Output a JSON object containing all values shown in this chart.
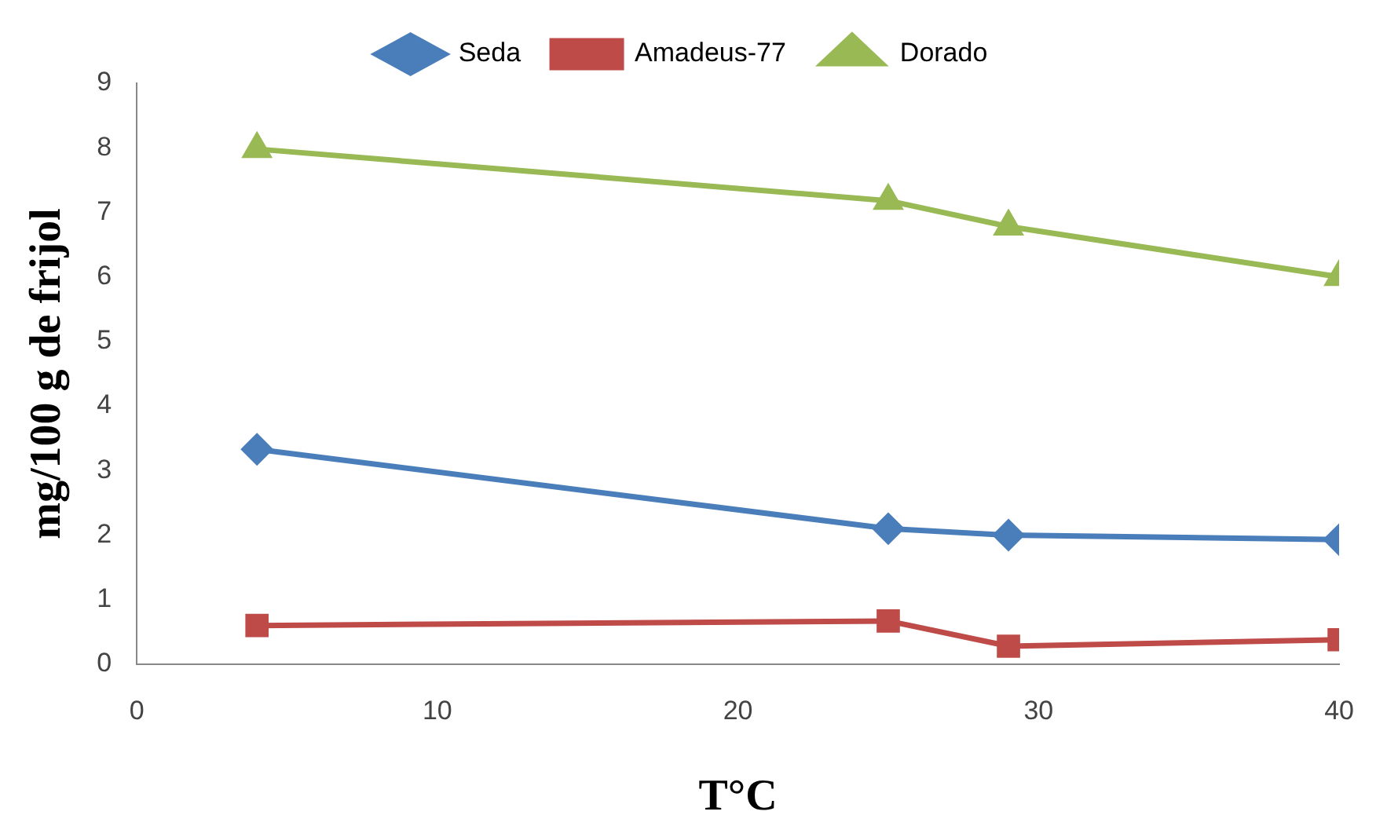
{
  "chart_data": {
    "type": "line",
    "xlabel": "T°C",
    "ylabel": "mg/100 g de frijol",
    "xlim": [
      0,
      40
    ],
    "xticks": [
      0,
      10,
      20,
      30,
      40
    ],
    "ylim": [
      0,
      9
    ],
    "yticks": [
      0,
      1,
      2,
      3,
      4,
      5,
      6,
      7,
      8,
      9
    ],
    "grid": false,
    "legend": "top",
    "line_style": "solid",
    "series": [
      {
        "name": "Seda",
        "color": "#4a7ebb",
        "marker": "diamond",
        "x": [
          4,
          25,
          29,
          40
        ],
        "values": [
          3.33,
          2.1,
          2.0,
          1.93
        ]
      },
      {
        "name": "Amadeus-77",
        "color": "#be4b48",
        "marker": "square",
        "x": [
          4,
          25,
          29,
          40
        ],
        "values": [
          0.6,
          0.67,
          0.28,
          0.38
        ]
      },
      {
        "name": "Dorado",
        "color": "#98b954",
        "marker": "triangle",
        "x": [
          4,
          25,
          29,
          40
        ],
        "values": [
          7.98,
          7.18,
          6.78,
          6.0
        ]
      }
    ]
  }
}
